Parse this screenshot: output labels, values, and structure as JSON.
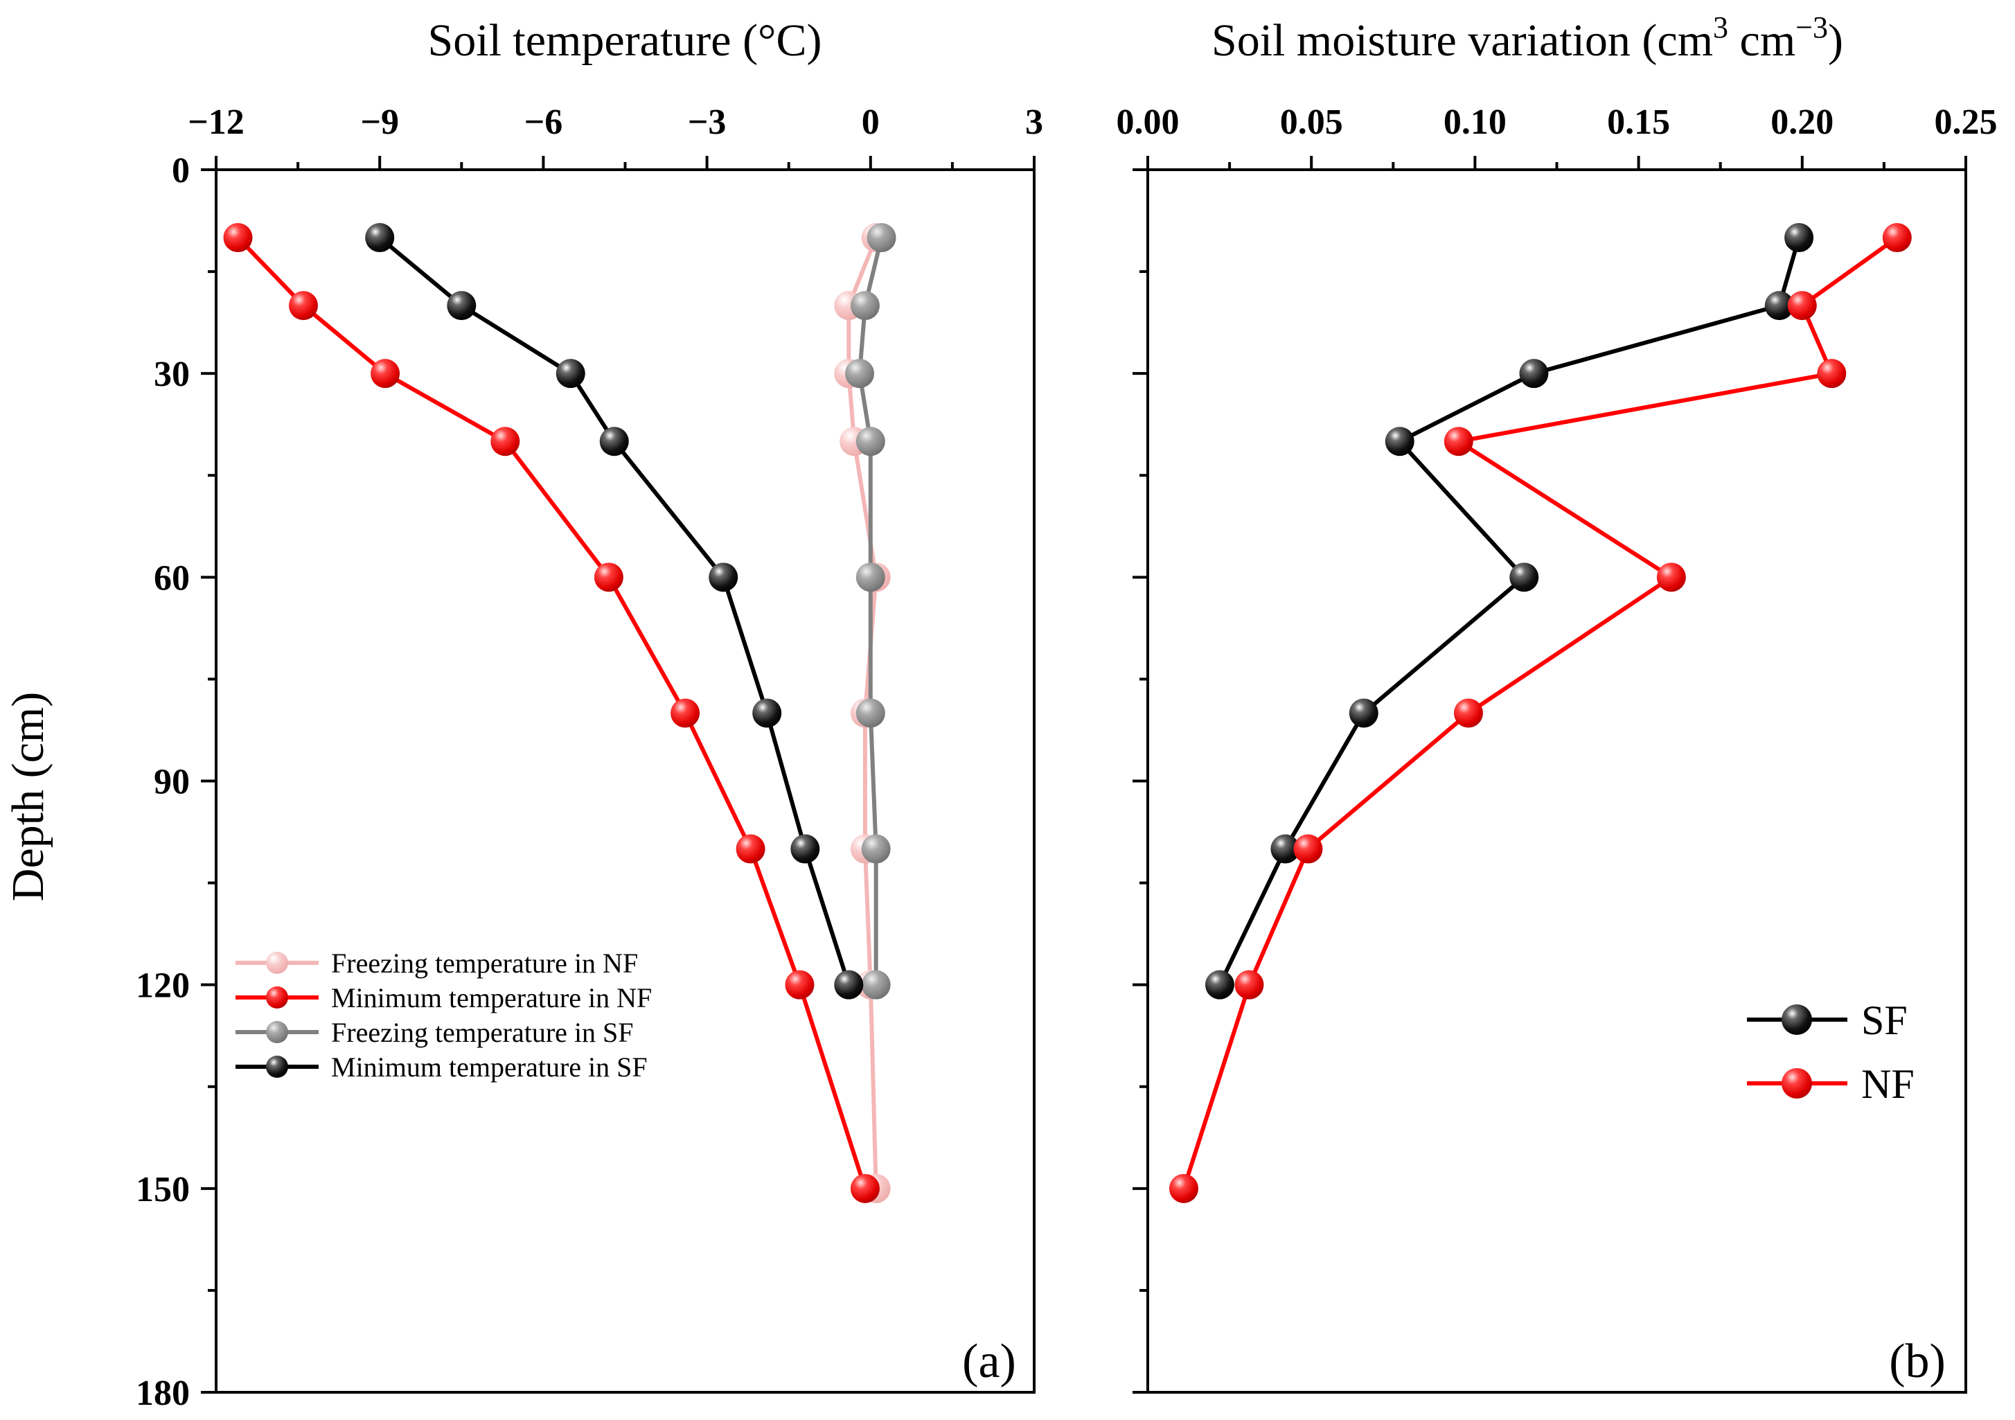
{
  "chart_data": [
    {
      "type": "line",
      "panel": "(a)",
      "title": "Soil temperature (°C)",
      "xlabel": "Soil temperature (°C)",
      "ylabel": "Depth (cm)",
      "xlim": [
        -12,
        3
      ],
      "ylim": [
        180,
        0
      ],
      "x_ticks": [
        -12,
        -9,
        -6,
        -3,
        0,
        3
      ],
      "x_tick_labels": [
        "−12",
        "−9",
        "−6",
        "−3",
        "0",
        "3"
      ],
      "y_ticks": [
        0,
        30,
        60,
        90,
        120,
        150,
        180
      ],
      "y_tick_labels": [
        "0",
        "30",
        "60",
        "90",
        "120",
        "150",
        "180"
      ],
      "legend_position": "bottom-left",
      "series": [
        {
          "name": "Freezing temperature in NF",
          "color": "#f4b6b6",
          "depth": [
            10,
            20,
            30,
            40,
            60,
            80,
            100,
            120,
            150
          ],
          "values": [
            0.1,
            -0.4,
            -0.4,
            -0.3,
            0.1,
            -0.1,
            -0.1,
            0.0,
            0.1
          ]
        },
        {
          "name": "Minimum temperature in NF",
          "color": "#ff0000",
          "depth": [
            10,
            20,
            30,
            40,
            60,
            80,
            100,
            120,
            150
          ],
          "values": [
            -11.6,
            -10.4,
            -8.9,
            -6.7,
            -4.8,
            -3.4,
            -2.2,
            -1.3,
            -0.1
          ]
        },
        {
          "name": "Freezing temperature in SF",
          "color": "#808080",
          "depth": [
            10,
            20,
            30,
            40,
            60,
            80,
            100,
            120
          ],
          "values": [
            0.2,
            -0.1,
            -0.2,
            0.0,
            0.0,
            0.0,
            0.1,
            0.1
          ]
        },
        {
          "name": "Minimum temperature in SF",
          "color": "#000000",
          "depth": [
            10,
            20,
            30,
            40,
            60,
            80,
            100,
            120
          ],
          "values": [
            -9.0,
            -7.5,
            -5.5,
            -4.7,
            -2.7,
            -1.9,
            -1.2,
            -0.4
          ]
        }
      ]
    },
    {
      "type": "line",
      "panel": "(b)",
      "title": "Soil moisture variation (cm³ cm⁻³)",
      "xlabel": "Soil moisture variation (cm³ cm⁻³)",
      "ylabel": "Depth (cm)",
      "xlim": [
        0.0,
        0.25
      ],
      "ylim": [
        180,
        0
      ],
      "x_ticks": [
        0.0,
        0.05,
        0.1,
        0.15,
        0.2,
        0.25
      ],
      "x_tick_labels": [
        "0.00",
        "0.05",
        "0.10",
        "0.15",
        "0.20",
        "0.25"
      ],
      "legend_position": "bottom-right",
      "series": [
        {
          "name": "SF",
          "color": "#000000",
          "depth": [
            10,
            20,
            30,
            40,
            60,
            80,
            100,
            120
          ],
          "values": [
            0.199,
            0.193,
            0.118,
            0.077,
            0.115,
            0.066,
            0.042,
            0.022
          ]
        },
        {
          "name": "NF",
          "color": "#ff0000",
          "depth": [
            10,
            20,
            30,
            40,
            60,
            80,
            100,
            120,
            150
          ],
          "values": [
            0.229,
            0.2,
            0.209,
            0.095,
            0.16,
            0.098,
            0.049,
            0.031,
            0.011
          ]
        }
      ]
    }
  ],
  "text": {
    "panel_a_title_main": "Soil temperature (°C)",
    "panel_b_title_main": "Soil moisture variation (cm",
    "panel_b_title_sup1": "3",
    "panel_b_title_mid": " cm",
    "panel_b_title_sup2": "−3",
    "panel_b_title_end": ")",
    "y_axis_title": "Depth (cm)",
    "panel_a_label": "(a)",
    "panel_b_label": "(b)"
  }
}
